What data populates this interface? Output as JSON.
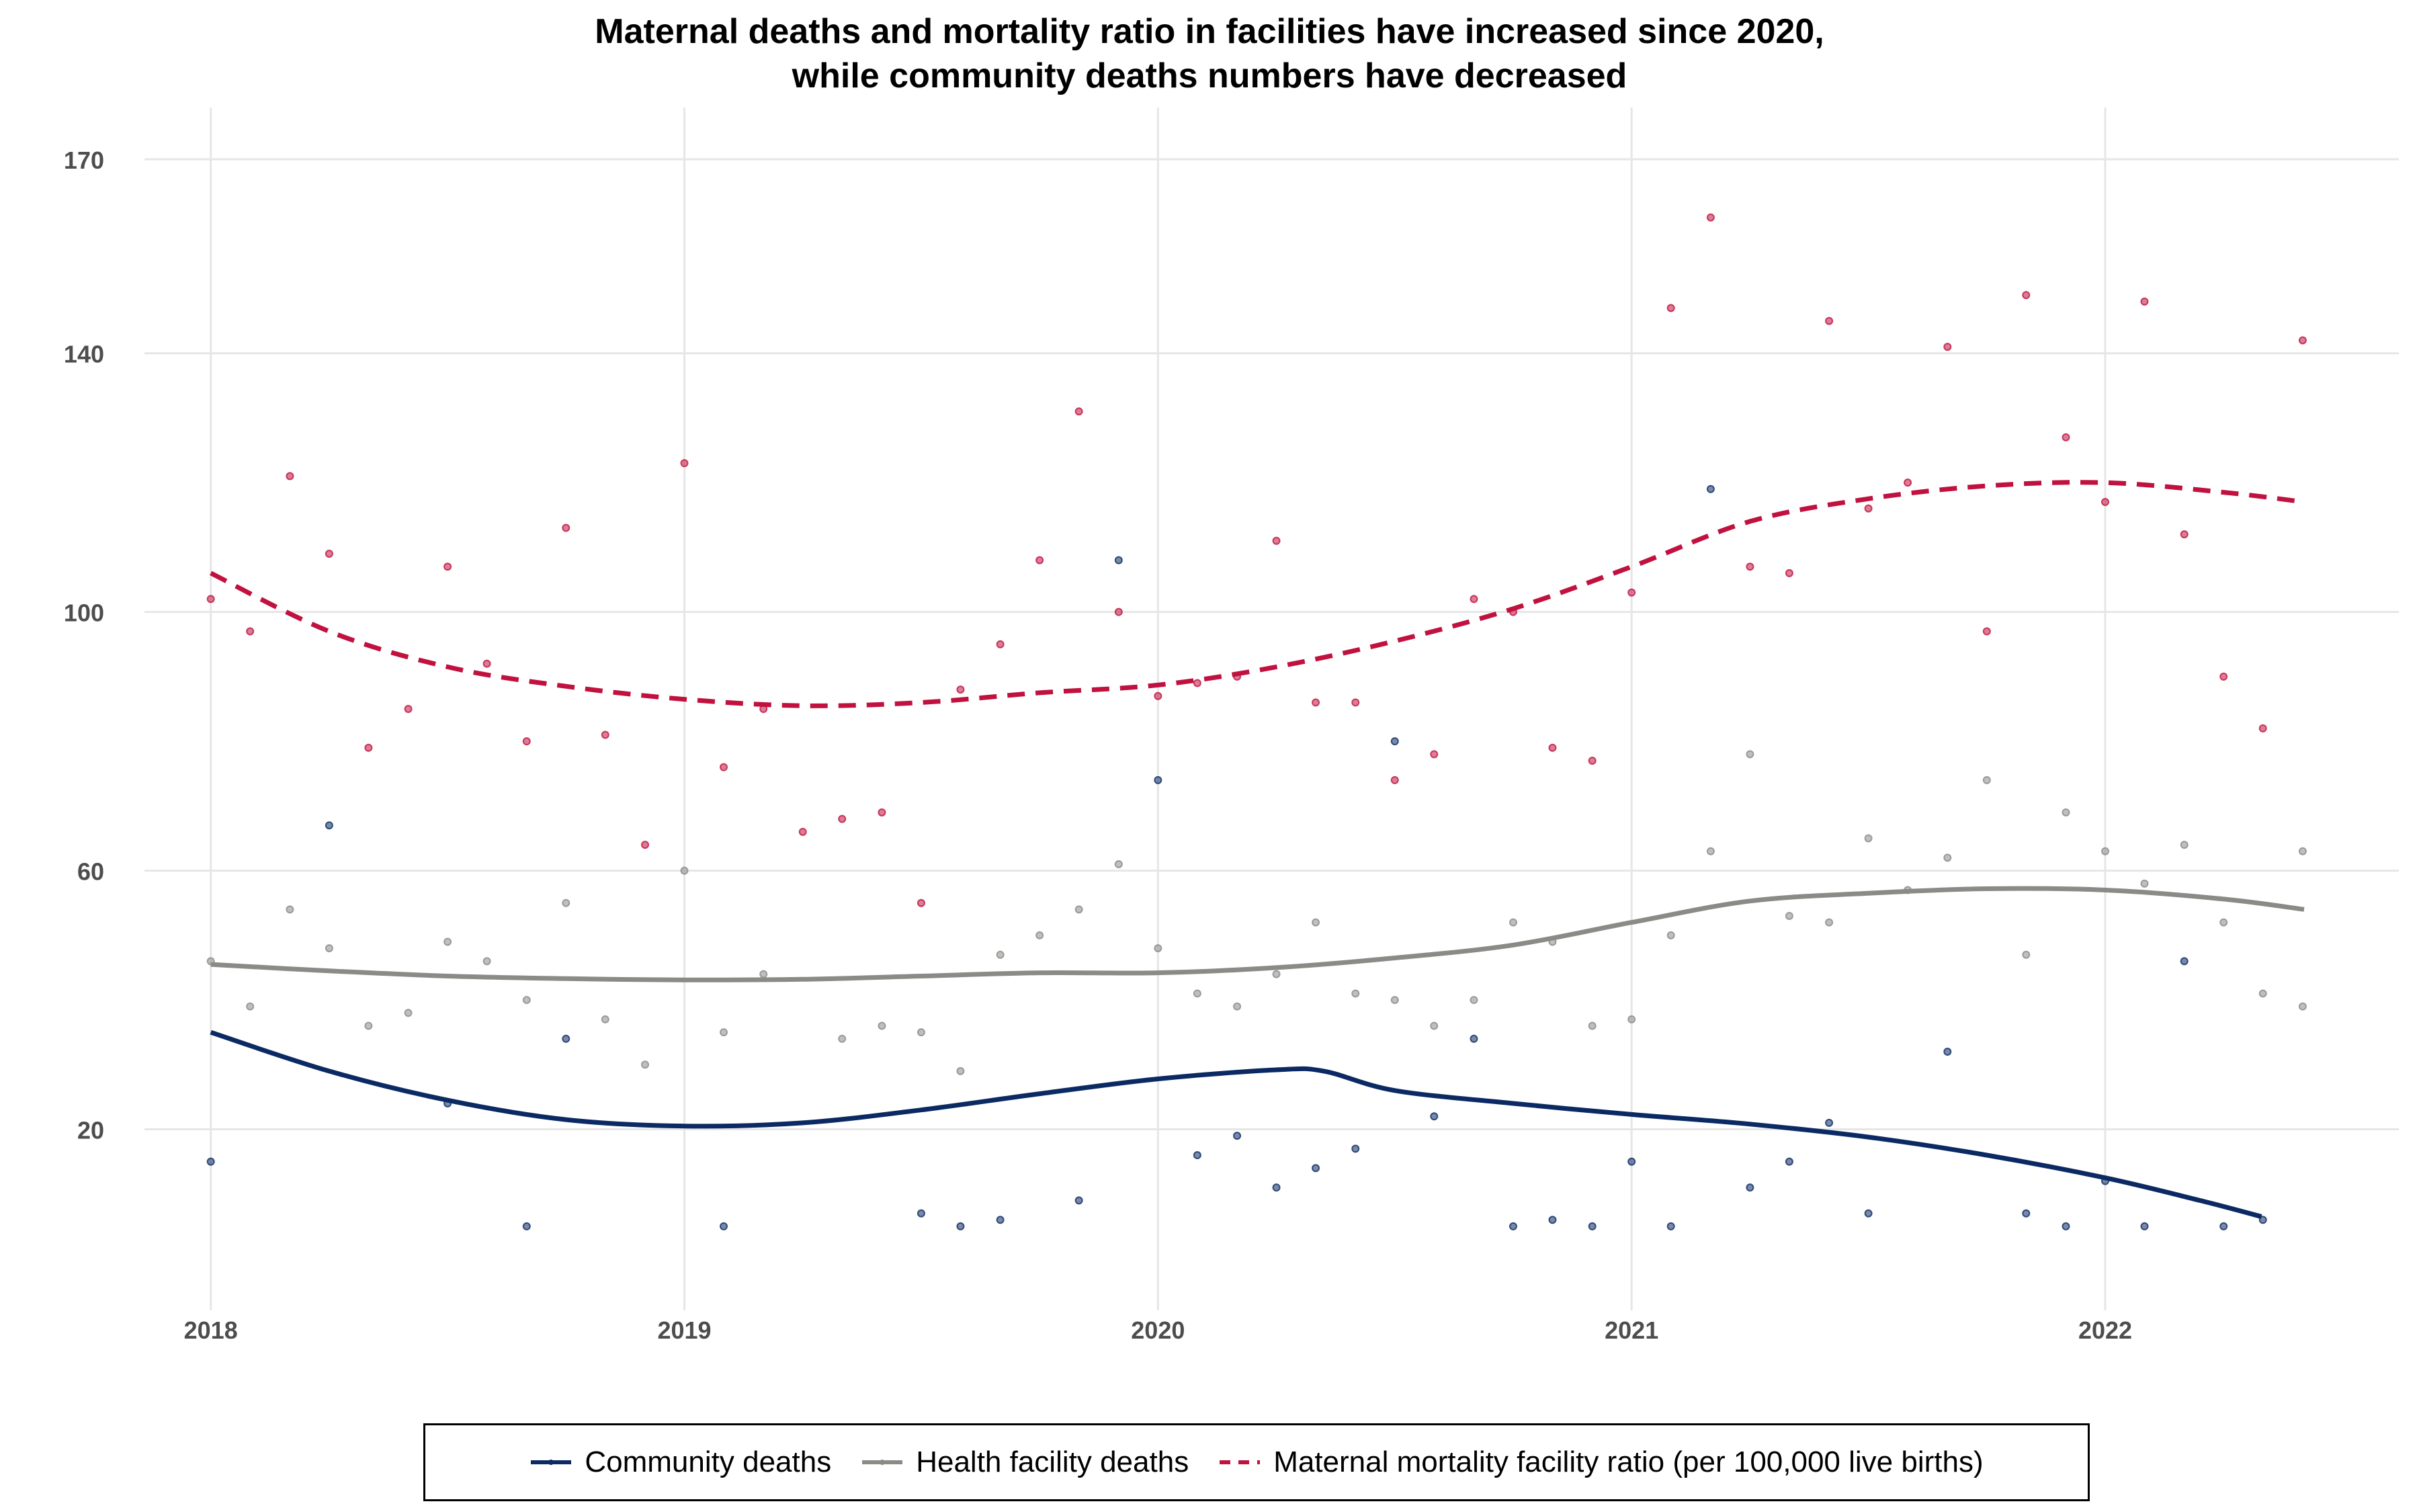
{
  "chart_data": {
    "type": "scatter",
    "title_lines": [
      "Maternal deaths and mortality ratio in facilities have increased since 2020,",
      "while community deaths numbers have decreased"
    ],
    "xlabel": "",
    "ylabel": "",
    "xlim": [
      2017.86,
      2022.62
    ],
    "ylim": [
      -8,
      178
    ],
    "x_ticks": [
      2018,
      2019,
      2020,
      2021,
      2022
    ],
    "y_ticks": [
      20,
      60,
      100,
      140,
      170
    ],
    "grid": true,
    "legend_position": "bottom",
    "series": [
      {
        "name": "Community deaths",
        "color": "#0b2a63",
        "line_style": "solid",
        "points": [
          [
            2018.0,
            15
          ],
          [
            2018.25,
            67
          ],
          [
            2018.5,
            24
          ],
          [
            2018.667,
            5
          ],
          [
            2018.75,
            34
          ],
          [
            2019.083,
            5
          ],
          [
            2019.5,
            7
          ],
          [
            2019.583,
            5
          ],
          [
            2019.667,
            6
          ],
          [
            2019.833,
            9
          ],
          [
            2019.917,
            108
          ],
          [
            2020.0,
            74
          ],
          [
            2020.083,
            16
          ],
          [
            2020.167,
            19
          ],
          [
            2020.25,
            11
          ],
          [
            2020.333,
            14
          ],
          [
            2020.417,
            17
          ],
          [
            2020.5,
            80
          ],
          [
            2020.583,
            22
          ],
          [
            2020.667,
            34
          ],
          [
            2020.75,
            5
          ],
          [
            2020.833,
            6
          ],
          [
            2020.917,
            5
          ],
          [
            2021.0,
            15
          ],
          [
            2021.083,
            5
          ],
          [
            2021.167,
            119
          ],
          [
            2021.25,
            11
          ],
          [
            2021.333,
            15
          ],
          [
            2021.417,
            21
          ],
          [
            2021.5,
            7
          ],
          [
            2021.667,
            32
          ],
          [
            2021.833,
            7
          ],
          [
            2021.917,
            5
          ],
          [
            2022.0,
            12
          ],
          [
            2022.083,
            5
          ],
          [
            2022.167,
            46
          ],
          [
            2022.25,
            5
          ],
          [
            2022.333,
            6
          ]
        ],
        "smooth": [
          [
            2018.0,
            35
          ],
          [
            2018.25,
            29
          ],
          [
            2018.5,
            24.5
          ],
          [
            2018.75,
            21.5
          ],
          [
            2019.0,
            20.5
          ],
          [
            2019.25,
            21
          ],
          [
            2019.5,
            23
          ],
          [
            2019.75,
            25.5
          ],
          [
            2020.0,
            27.8
          ],
          [
            2020.25,
            29.2
          ],
          [
            2020.35,
            29
          ],
          [
            2020.5,
            26
          ],
          [
            2020.75,
            24
          ],
          [
            2021.0,
            22.3
          ],
          [
            2021.25,
            20.8
          ],
          [
            2021.5,
            18.8
          ],
          [
            2021.75,
            16
          ],
          [
            2022.0,
            12.5
          ],
          [
            2022.2,
            9
          ],
          [
            2022.33,
            6.5
          ]
        ]
      },
      {
        "name": "Health facility deaths",
        "color": "#8a8a86",
        "line_style": "solid",
        "points": [
          [
            2018.0,
            46
          ],
          [
            2018.083,
            39
          ],
          [
            2018.167,
            54
          ],
          [
            2018.25,
            48
          ],
          [
            2018.333,
            36
          ],
          [
            2018.417,
            38
          ],
          [
            2018.5,
            49
          ],
          [
            2018.583,
            46
          ],
          [
            2018.667,
            40
          ],
          [
            2018.75,
            55
          ],
          [
            2018.833,
            37
          ],
          [
            2018.917,
            30
          ],
          [
            2019.0,
            60
          ],
          [
            2019.083,
            35
          ],
          [
            2019.167,
            44
          ],
          [
            2019.333,
            34
          ],
          [
            2019.417,
            36
          ],
          [
            2019.5,
            35
          ],
          [
            2019.583,
            29
          ],
          [
            2019.667,
            47
          ],
          [
            2019.75,
            50
          ],
          [
            2019.833,
            54
          ],
          [
            2019.917,
            61
          ],
          [
            2020.0,
            48
          ],
          [
            2020.083,
            41
          ],
          [
            2020.167,
            39
          ],
          [
            2020.25,
            44
          ],
          [
            2020.333,
            52
          ],
          [
            2020.417,
            41
          ],
          [
            2020.5,
            40
          ],
          [
            2020.583,
            36
          ],
          [
            2020.667,
            40
          ],
          [
            2020.75,
            52
          ],
          [
            2020.833,
            49
          ],
          [
            2020.917,
            36
          ],
          [
            2021.0,
            37
          ],
          [
            2021.083,
            50
          ],
          [
            2021.167,
            63
          ],
          [
            2021.25,
            78
          ],
          [
            2021.333,
            53
          ],
          [
            2021.417,
            52
          ],
          [
            2021.5,
            65
          ],
          [
            2021.583,
            57
          ],
          [
            2021.667,
            62
          ],
          [
            2021.75,
            74
          ],
          [
            2021.833,
            47
          ],
          [
            2021.917,
            69
          ],
          [
            2022.0,
            63
          ],
          [
            2022.083,
            58
          ],
          [
            2022.167,
            64
          ],
          [
            2022.25,
            52
          ],
          [
            2022.333,
            41
          ],
          [
            2022.417,
            39
          ],
          [
            2022.417,
            63
          ]
        ],
        "smooth": [
          [
            2018.0,
            45.5
          ],
          [
            2018.25,
            44.5
          ],
          [
            2018.5,
            43.7
          ],
          [
            2018.75,
            43.3
          ],
          [
            2019.0,
            43.1
          ],
          [
            2019.25,
            43.2
          ],
          [
            2019.5,
            43.7
          ],
          [
            2019.75,
            44.2
          ],
          [
            2020.0,
            44.2
          ],
          [
            2020.25,
            45
          ],
          [
            2020.5,
            46.5
          ],
          [
            2020.75,
            48.5
          ],
          [
            2021.0,
            52
          ],
          [
            2021.25,
            55.3
          ],
          [
            2021.5,
            56.5
          ],
          [
            2021.75,
            57.2
          ],
          [
            2022.0,
            57
          ],
          [
            2022.25,
            55.6
          ],
          [
            2022.42,
            54
          ]
        ]
      },
      {
        "name": "Maternal mortality facility ratio (per 100,000 live births)",
        "color": "#c0113f",
        "line_style": "dashed",
        "points": [
          [
            2018.0,
            102
          ],
          [
            2018.083,
            97
          ],
          [
            2018.167,
            121
          ],
          [
            2018.25,
            109
          ],
          [
            2018.333,
            79
          ],
          [
            2018.417,
            85
          ],
          [
            2018.5,
            107
          ],
          [
            2018.583,
            92
          ],
          [
            2018.667,
            80
          ],
          [
            2018.75,
            113
          ],
          [
            2018.833,
            81
          ],
          [
            2018.917,
            64
          ],
          [
            2019.0,
            123
          ],
          [
            2019.083,
            76
          ],
          [
            2019.167,
            85
          ],
          [
            2019.25,
            66
          ],
          [
            2019.333,
            68
          ],
          [
            2019.417,
            69
          ],
          [
            2019.5,
            55
          ],
          [
            2019.583,
            88
          ],
          [
            2019.667,
            95
          ],
          [
            2019.75,
            108
          ],
          [
            2019.833,
            131
          ],
          [
            2019.917,
            100
          ],
          [
            2020.0,
            87
          ],
          [
            2020.083,
            89
          ],
          [
            2020.167,
            90
          ],
          [
            2020.25,
            111
          ],
          [
            2020.333,
            86
          ],
          [
            2020.417,
            86
          ],
          [
            2020.5,
            74
          ],
          [
            2020.583,
            78
          ],
          [
            2020.667,
            102
          ],
          [
            2020.75,
            100
          ],
          [
            2020.833,
            79
          ],
          [
            2020.917,
            77
          ],
          [
            2021.0,
            103
          ],
          [
            2021.083,
            147
          ],
          [
            2021.167,
            161
          ],
          [
            2021.25,
            107
          ],
          [
            2021.333,
            106
          ],
          [
            2021.417,
            145
          ],
          [
            2021.5,
            116
          ],
          [
            2021.583,
            120
          ],
          [
            2021.667,
            141
          ],
          [
            2021.75,
            97
          ],
          [
            2021.833,
            149
          ],
          [
            2021.917,
            127
          ],
          [
            2022.0,
            117
          ],
          [
            2022.083,
            148
          ],
          [
            2022.167,
            112
          ],
          [
            2022.25,
            90
          ],
          [
            2022.333,
            82
          ],
          [
            2022.417,
            142
          ]
        ],
        "smooth": [
          [
            2018.0,
            106
          ],
          [
            2018.25,
            97
          ],
          [
            2018.5,
            91.5
          ],
          [
            2018.75,
            88.5
          ],
          [
            2019.0,
            86.5
          ],
          [
            2019.25,
            85.5
          ],
          [
            2019.5,
            86
          ],
          [
            2019.75,
            87.5
          ],
          [
            2020.0,
            88.7
          ],
          [
            2020.25,
            91.5
          ],
          [
            2020.5,
            95.5
          ],
          [
            2020.75,
            100.5
          ],
          [
            2021.0,
            107
          ],
          [
            2021.25,
            114
          ],
          [
            2021.5,
            117.5
          ],
          [
            2021.75,
            119.5
          ],
          [
            2022.0,
            120
          ],
          [
            2022.25,
            118.5
          ],
          [
            2022.42,
            117
          ]
        ]
      }
    ]
  }
}
